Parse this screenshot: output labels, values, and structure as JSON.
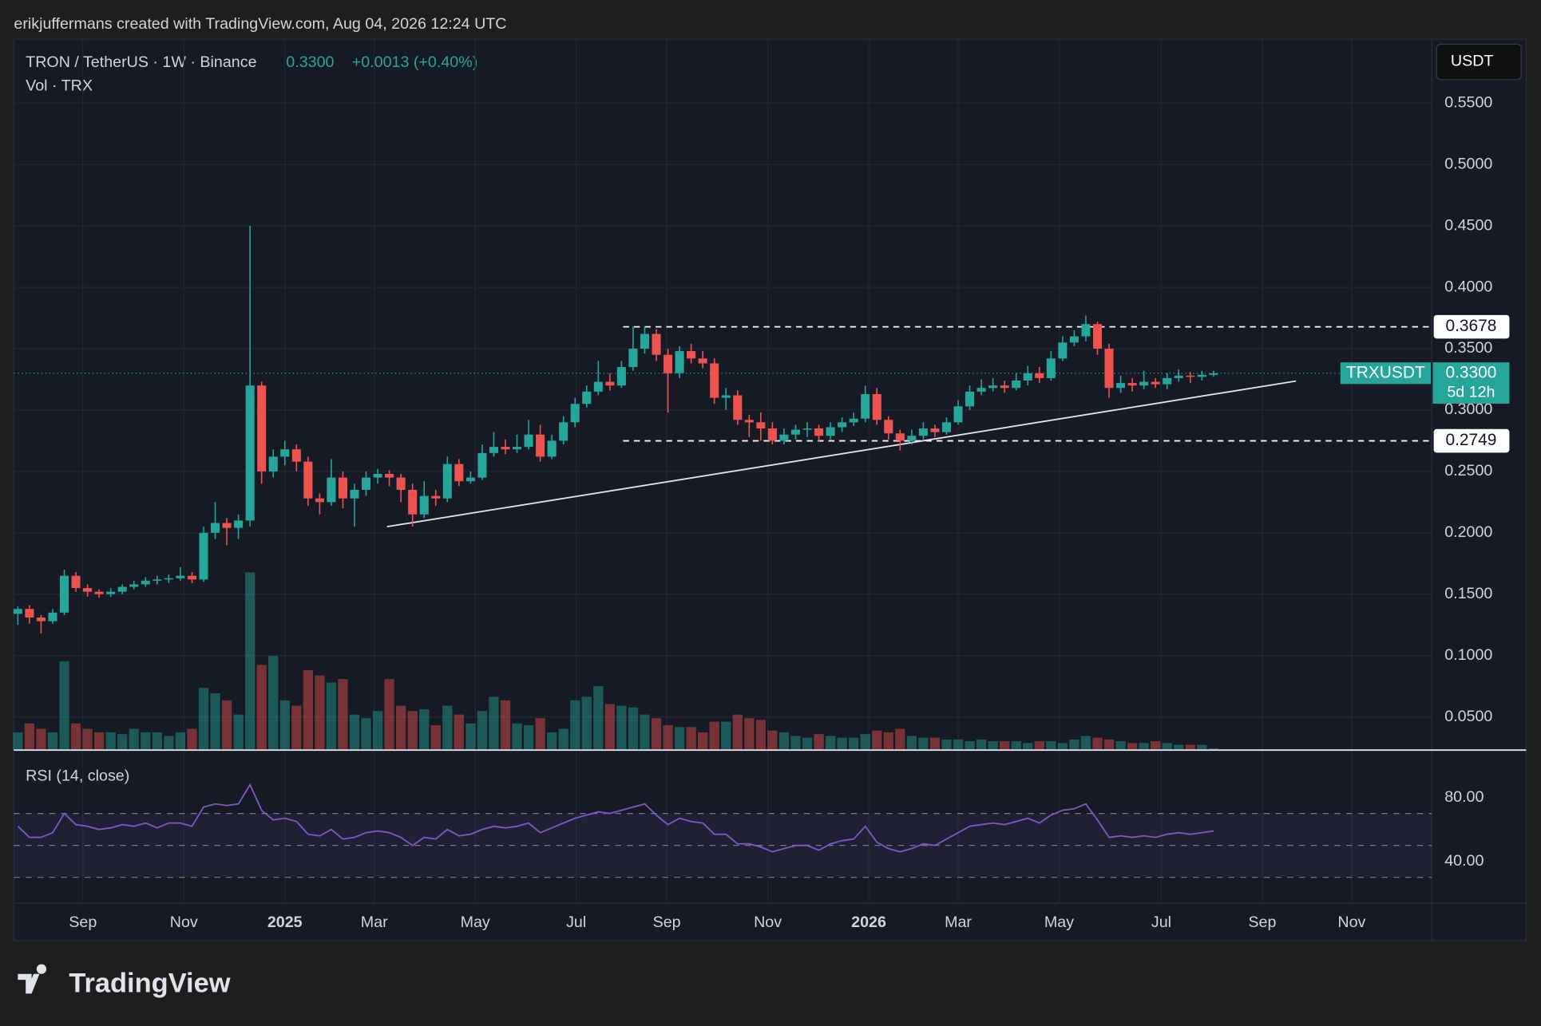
{
  "header": {
    "credit": "erikjuffermans created with TradingView.com, Aug 04, 2026 12:24 UTC",
    "brand": "TradingView"
  },
  "chart_data": {
    "type": "candlestick",
    "symbol": "TRON / TetherUS · 1W · Binance",
    "change": "+0.0013 (+0.40%)",
    "volume_title": "Vol · TRX",
    "currency": "USDT",
    "ticker": "TRXUSDT",
    "countdown": "5d 12h",
    "rsi_title": "RSI (14, close)",
    "last_price": {
      "value": 0.33,
      "label": "0.3300"
    },
    "up_color": "#26a69a",
    "down_color": "#ef5350",
    "rsi_color": "#7e57c2",
    "grid": true,
    "open": [
      0.134,
      0.138,
      0.131,
      0.128,
      0.135,
      0.165,
      0.155,
      0.152,
      0.15,
      0.152,
      0.156,
      0.158,
      0.161,
      0.162,
      0.163,
      0.165,
      0.162,
      0.2,
      0.208,
      0.204,
      0.21,
      0.32,
      0.25,
      0.262,
      0.268,
      0.258,
      0.228,
      0.225,
      0.245,
      0.228,
      0.235,
      0.245,
      0.248,
      0.245,
      0.235,
      0.215,
      0.23,
      0.228,
      0.256,
      0.242,
      0.245,
      0.265,
      0.27,
      0.268,
      0.27,
      0.28,
      0.262,
      0.275,
      0.29,
      0.305,
      0.315,
      0.323,
      0.32,
      0.335,
      0.35,
      0.362,
      0.345,
      0.33,
      0.348,
      0.342,
      0.338,
      0.31,
      0.312,
      0.292,
      0.29,
      0.285,
      0.275,
      0.28,
      0.284,
      0.285,
      0.279,
      0.286,
      0.29,
      0.293,
      0.313,
      0.292,
      0.281,
      0.275,
      0.279,
      0.285,
      0.282,
      0.29,
      0.303,
      0.315,
      0.318,
      0.32,
      0.318,
      0.324,
      0.33,
      0.326,
      0.342,
      0.355,
      0.36,
      0.37,
      0.35,
      0.318,
      0.322,
      0.32,
      0.323,
      0.321,
      0.326,
      0.328,
      0.327,
      0.3287
    ],
    "high": [
      0.14,
      0.141,
      0.133,
      0.138,
      0.17,
      0.168,
      0.158,
      0.154,
      0.155,
      0.158,
      0.161,
      0.164,
      0.165,
      0.166,
      0.172,
      0.168,
      0.205,
      0.225,
      0.212,
      0.215,
      0.45,
      0.323,
      0.268,
      0.275,
      0.272,
      0.262,
      0.232,
      0.26,
      0.25,
      0.24,
      0.25,
      0.252,
      0.251,
      0.248,
      0.24,
      0.242,
      0.235,
      0.262,
      0.26,
      0.25,
      0.272,
      0.282,
      0.276,
      0.28,
      0.292,
      0.288,
      0.28,
      0.295,
      0.31,
      0.32,
      0.34,
      0.33,
      0.34,
      0.368,
      0.368,
      0.366,
      0.35,
      0.352,
      0.354,
      0.348,
      0.342,
      0.318,
      0.316,
      0.296,
      0.298,
      0.29,
      0.285,
      0.288,
      0.29,
      0.288,
      0.29,
      0.294,
      0.298,
      0.32,
      0.318,
      0.295,
      0.284,
      0.284,
      0.29,
      0.288,
      0.294,
      0.308,
      0.32,
      0.325,
      0.326,
      0.324,
      0.33,
      0.336,
      0.335,
      0.348,
      0.36,
      0.365,
      0.377,
      0.372,
      0.354,
      0.328,
      0.326,
      0.332,
      0.326,
      0.33,
      0.333,
      0.331,
      0.332,
      0.332
    ],
    "low": [
      0.125,
      0.126,
      0.118,
      0.126,
      0.133,
      0.152,
      0.148,
      0.147,
      0.148,
      0.15,
      0.154,
      0.156,
      0.158,
      0.159,
      0.161,
      0.159,
      0.16,
      0.195,
      0.19,
      0.195,
      0.205,
      0.24,
      0.245,
      0.255,
      0.25,
      0.222,
      0.215,
      0.222,
      0.22,
      0.205,
      0.23,
      0.24,
      0.238,
      0.225,
      0.205,
      0.212,
      0.222,
      0.225,
      0.238,
      0.24,
      0.243,
      0.262,
      0.264,
      0.265,
      0.268,
      0.258,
      0.26,
      0.272,
      0.286,
      0.302,
      0.312,
      0.316,
      0.318,
      0.332,
      0.346,
      0.34,
      0.298,
      0.326,
      0.338,
      0.334,
      0.305,
      0.3,
      0.288,
      0.278,
      0.275,
      0.272,
      0.272,
      0.276,
      0.278,
      0.274,
      0.276,
      0.282,
      0.287,
      0.29,
      0.288,
      0.276,
      0.267,
      0.272,
      0.276,
      0.278,
      0.28,
      0.288,
      0.3,
      0.312,
      0.315,
      0.314,
      0.316,
      0.32,
      0.322,
      0.324,
      0.34,
      0.352,
      0.356,
      0.345,
      0.31,
      0.314,
      0.315,
      0.317,
      0.318,
      0.317,
      0.323,
      0.322,
      0.324,
      0.327
    ],
    "close": [
      0.138,
      0.131,
      0.128,
      0.135,
      0.165,
      0.155,
      0.152,
      0.15,
      0.152,
      0.156,
      0.158,
      0.161,
      0.162,
      0.163,
      0.165,
      0.162,
      0.2,
      0.208,
      0.204,
      0.21,
      0.32,
      0.25,
      0.262,
      0.268,
      0.258,
      0.228,
      0.225,
      0.245,
      0.228,
      0.235,
      0.245,
      0.248,
      0.245,
      0.235,
      0.215,
      0.23,
      0.228,
      0.256,
      0.242,
      0.245,
      0.265,
      0.27,
      0.268,
      0.27,
      0.28,
      0.262,
      0.275,
      0.29,
      0.305,
      0.315,
      0.323,
      0.32,
      0.335,
      0.35,
      0.362,
      0.345,
      0.33,
      0.348,
      0.342,
      0.338,
      0.31,
      0.312,
      0.292,
      0.29,
      0.285,
      0.275,
      0.28,
      0.284,
      0.285,
      0.279,
      0.286,
      0.29,
      0.293,
      0.313,
      0.292,
      0.281,
      0.275,
      0.279,
      0.285,
      0.282,
      0.29,
      0.303,
      0.315,
      0.318,
      0.32,
      0.318,
      0.324,
      0.33,
      0.326,
      0.342,
      0.355,
      0.36,
      0.37,
      0.35,
      0.318,
      0.322,
      0.32,
      0.323,
      0.321,
      0.326,
      0.328,
      0.327,
      0.3287,
      0.33
    ],
    "volume": [
      10,
      15,
      12,
      10,
      50,
      15,
      12,
      10,
      10,
      9,
      12,
      10,
      10,
      8,
      10,
      12,
      35,
      32,
      28,
      20,
      100,
      48,
      53,
      28,
      25,
      45,
      42,
      38,
      40,
      20,
      18,
      22,
      40,
      25,
      22,
      23,
      14,
      25,
      20,
      15,
      22,
      30,
      28,
      15,
      14,
      18,
      10,
      12,
      28,
      30,
      36,
      26,
      25,
      24,
      20,
      18,
      14,
      13,
      13,
      10,
      16,
      16,
      20,
      18,
      17,
      11,
      10,
      8,
      7,
      9,
      8,
      7,
      7,
      9,
      11,
      10,
      12,
      8,
      7,
      7,
      6,
      6,
      5,
      6,
      5,
      5,
      5,
      4,
      5,
      5,
      4,
      6,
      8,
      7,
      6,
      5,
      4,
      4,
      5,
      4,
      3,
      3,
      3,
      1
    ],
    "rsi": [
      62,
      55,
      55,
      58,
      70,
      63,
      62,
      60,
      61,
      63,
      62,
      64,
      61,
      64,
      64,
      62,
      74,
      76,
      75,
      76,
      88,
      72,
      66,
      67,
      65,
      57,
      56,
      60,
      54,
      55,
      58,
      59,
      58,
      55,
      50,
      55,
      54,
      60,
      56,
      57,
      60,
      62,
      61,
      62,
      64,
      58,
      61,
      64,
      67,
      69,
      71,
      70,
      72,
      74,
      76,
      69,
      63,
      67,
      65,
      64,
      57,
      57,
      51,
      51,
      49,
      46,
      48,
      50,
      50,
      47,
      51,
      53,
      54,
      62,
      52,
      48,
      46,
      48,
      51,
      50,
      54,
      58,
      62,
      63,
      64,
      63,
      65,
      67,
      64,
      69,
      72,
      73,
      76,
      66,
      55,
      56,
      55,
      56,
      55,
      57,
      58,
      57,
      58,
      59
    ],
    "levels": [
      0.3678,
      0.2749
    ],
    "trendline": {
      "x": [
        31.8,
        110.1
      ],
      "y": [
        0.205,
        0.3236
      ]
    },
    "xlim": [
      -0.34,
      121.8
    ],
    "xticks": [
      {
        "value": 5.6,
        "label": "Sep"
      },
      {
        "value": 14.3,
        "label": "Nov"
      },
      {
        "value": 23.0,
        "label": "2025"
      },
      {
        "value": 30.7,
        "label": "Mar"
      },
      {
        "value": 39.4,
        "label": "May"
      },
      {
        "value": 48.1,
        "label": "Jul"
      },
      {
        "value": 55.9,
        "label": "Sep"
      },
      {
        "value": 64.6,
        "label": "Nov"
      },
      {
        "value": 73.3,
        "label": "2026"
      },
      {
        "value": 81.0,
        "label": "Mar"
      },
      {
        "value": 89.7,
        "label": "May"
      },
      {
        "value": 98.5,
        "label": "Jul"
      },
      {
        "value": 107.2,
        "label": "Sep"
      },
      {
        "value": 114.9,
        "label": "Nov"
      }
    ],
    "ylim": [
      0.023,
      0.602
    ],
    "yticks": [
      {
        "value": 0.05,
        "label": "0.0500"
      },
      {
        "value": 0.1,
        "label": "0.1000"
      },
      {
        "value": 0.15,
        "label": "0.1500"
      },
      {
        "value": 0.2,
        "label": "0.2000"
      },
      {
        "value": 0.25,
        "label": "0.2500"
      },
      {
        "value": 0.3,
        "label": "0.3000"
      },
      {
        "value": 0.35,
        "label": "0.3500"
      },
      {
        "value": 0.4,
        "label": "0.4000"
      },
      {
        "value": 0.45,
        "label": "0.4500"
      },
      {
        "value": 0.5,
        "label": "0.5000"
      },
      {
        "value": 0.55,
        "label": "0.5500"
      }
    ],
    "volume_ylim": [
      0,
      400
    ],
    "rsi_ylim": [
      15,
      106
    ],
    "rsi_yticks": [
      {
        "value": 40,
        "label": "40.00"
      },
      {
        "value": 80,
        "label": "80.00"
      }
    ],
    "rsi_levels": [
      70,
      50,
      30
    ]
  }
}
